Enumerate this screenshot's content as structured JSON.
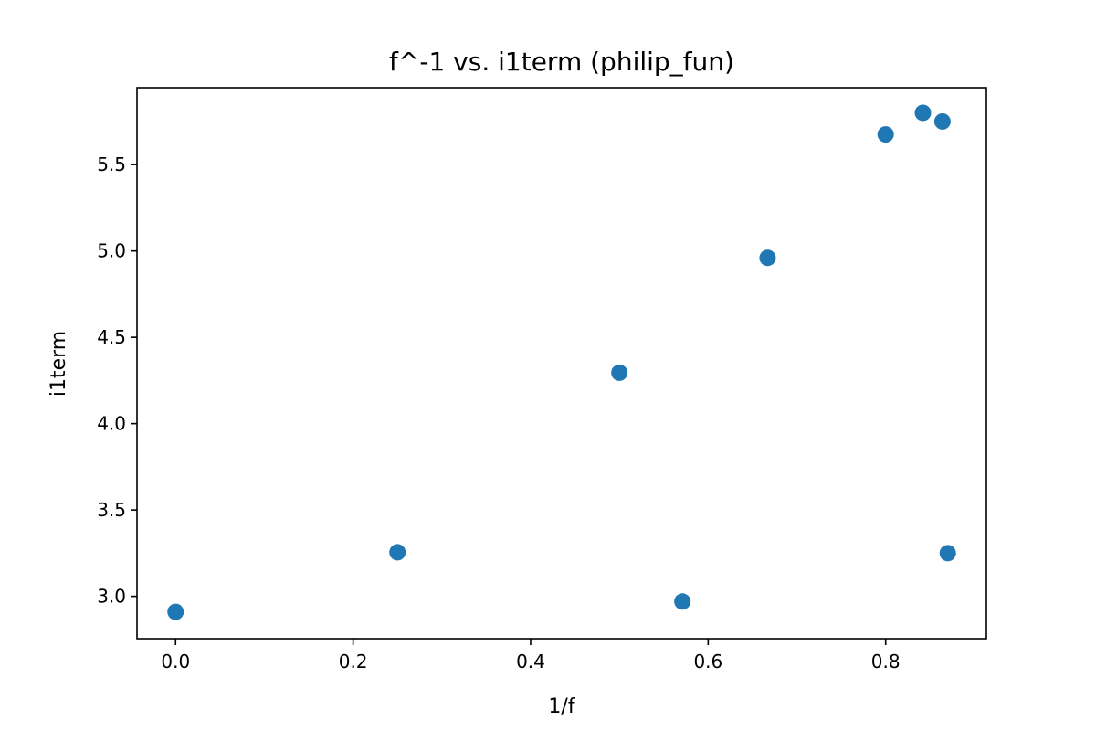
{
  "chart_data": {
    "type": "scatter",
    "title": "f^-1 vs. i1term (philip_fun)",
    "xlabel": "1/f",
    "ylabel": "i1term",
    "xlim": [
      -0.0435,
      0.9135
    ],
    "ylim": [
      2.7545,
      5.9455
    ],
    "xticks": [
      0.0,
      0.2,
      0.4,
      0.6,
      0.8
    ],
    "xtick_labels": [
      "0.0",
      "0.2",
      "0.4",
      "0.6",
      "0.8"
    ],
    "yticks": [
      3.0,
      3.5,
      4.0,
      4.5,
      5.0,
      5.5
    ],
    "ytick_labels": [
      "3.0",
      "3.5",
      "4.0",
      "4.5",
      "5.0",
      "5.5"
    ],
    "grid": false,
    "color": "#1f77b4",
    "points": [
      {
        "x": 0.0,
        "y": 2.91
      },
      {
        "x": 0.25,
        "y": 3.255
      },
      {
        "x": 0.5,
        "y": 4.295
      },
      {
        "x": 0.571,
        "y": 2.97
      },
      {
        "x": 0.667,
        "y": 4.96
      },
      {
        "x": 0.8,
        "y": 5.675
      },
      {
        "x": 0.842,
        "y": 5.8
      },
      {
        "x": 0.864,
        "y": 5.75
      },
      {
        "x": 0.87,
        "y": 3.25
      }
    ]
  }
}
